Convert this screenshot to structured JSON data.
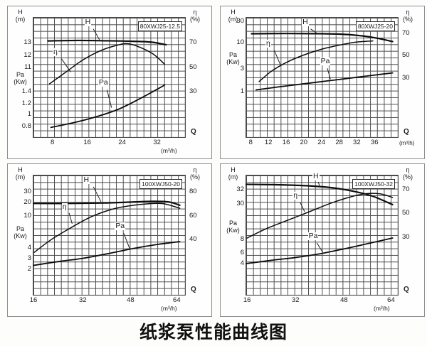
{
  "page": {
    "title": "纸浆泵性能曲线图"
  },
  "chart_data": [
    {
      "type": "line",
      "model": "80XWJ25-12.5",
      "x_label": "Q",
      "x_unit": "(m³/h)",
      "unit_inline": false,
      "left_axis": {
        "label": "H",
        "unit": "(m)",
        "mid_label": "Pa",
        "mid_unit": "(Kw)",
        "mid_y": 52
      },
      "right_axis": {
        "label": "η",
        "unit": "(%)"
      },
      "q": [
        8,
        16,
        24,
        32
      ],
      "series": [
        {
          "name": "H",
          "unit": "m",
          "values": [
            13.2,
            13.1,
            13.0,
            12.9
          ]
        },
        {
          "name": "η",
          "unit": "%",
          "values": [
            37,
            58,
            68,
            55
          ]
        },
        {
          "name": "Pa",
          "unit": "Kw",
          "values": [
            0.8,
            0.95,
            1.18,
            1.45
          ]
        }
      ],
      "grid": {
        "cols": 22,
        "rows": 18
      },
      "x_ticks": [
        {
          "label": "8",
          "x": 13
        },
        {
          "label": "16",
          "x": 36
        },
        {
          "label": "24",
          "x": 59
        },
        {
          "label": "32",
          "x": 82
        }
      ],
      "left_ticks": [
        {
          "label": "13",
          "y": 22
        },
        {
          "label": "12",
          "y": 33
        },
        {
          "label": "11",
          "y": 43
        },
        {
          "label": "1.4",
          "y": 63
        },
        {
          "label": "1.2",
          "y": 73
        },
        {
          "label": "1",
          "y": 82
        },
        {
          "label": "0.8",
          "y": 92
        }
      ],
      "right_ticks": [
        {
          "label": "70",
          "y": 22
        },
        {
          "label": "50",
          "y": 43
        },
        {
          "label": "30",
          "y": 63
        }
      ],
      "curves": [
        {
          "name": "H",
          "points": [
            [
              10,
              20
            ],
            [
              30,
              19.6
            ],
            [
              50,
              19.9
            ],
            [
              66,
              20.3
            ],
            [
              78,
              21
            ],
            [
              88,
              23.2
            ]
          ]
        },
        {
          "name": "η",
          "points": [
            [
              11,
              56
            ],
            [
              22,
              46
            ],
            [
              33,
              36
            ],
            [
              45,
              28
            ],
            [
              56,
              23.5
            ],
            [
              63,
              22.3
            ],
            [
              72,
              26
            ],
            [
              80,
              31.5
            ],
            [
              87,
              39.5
            ]
          ]
        },
        {
          "name": "Pa",
          "points": [
            [
              12,
              92.5
            ],
            [
              27,
              88.5
            ],
            [
              42,
              83.5
            ],
            [
              57,
              77
            ],
            [
              72,
              67.5
            ],
            [
              87,
              57
            ]
          ]
        }
      ],
      "annotations": [
        {
          "text": "H",
          "x": 36,
          "y": 4,
          "leader": [
            40,
            10,
            44,
            19
          ]
        },
        {
          "text": "η",
          "x": 15,
          "y": 29,
          "leader": [
            19,
            35,
            25,
            46
          ]
        },
        {
          "text": "Pa",
          "x": 45,
          "y": 55,
          "leader": [
            49,
            61,
            52,
            76
          ]
        }
      ]
    },
    {
      "type": "line",
      "model": "80XWJ25-20",
      "x_label": "Q",
      "x_unit": "(m³/h)",
      "unit_inline": true,
      "left_axis": {
        "label": "H",
        "unit": "(m)",
        "mid_label": "Pa",
        "mid_unit": "(Kw)",
        "mid_y": 35
      },
      "right_axis": {
        "label": "η",
        "unit": "(%)"
      },
      "q": [
        8,
        12,
        16,
        20,
        24,
        28,
        32,
        36
      ],
      "series": [
        {
          "name": "H",
          "unit": "m",
          "values": [
            21,
            21,
            21,
            20.8,
            20.5,
            20.1,
            19.4,
            18.5
          ]
        },
        {
          "name": "η",
          "unit": "%",
          "values": [
            28,
            37,
            44,
            50,
            55,
            59,
            63,
            64
          ]
        },
        {
          "name": "Pa",
          "unit": "Kw",
          "values": [
            1.15,
            1.3,
            1.45,
            1.6,
            1.8,
            2.0,
            2.2,
            2.5
          ]
        }
      ],
      "grid": {
        "cols": 22,
        "rows": 18
      },
      "x_ticks": [
        {
          "label": "8",
          "x": 3.4
        },
        {
          "label": "12",
          "x": 15.1
        },
        {
          "label": "16",
          "x": 26.8
        },
        {
          "label": "20",
          "x": 38.4
        },
        {
          "label": "24",
          "x": 50.1
        },
        {
          "label": "28",
          "x": 61.8
        },
        {
          "label": "32",
          "x": 73.4
        },
        {
          "label": "36",
          "x": 85.1
        }
      ],
      "left_ticks": [
        {
          "label": "30",
          "y": 4
        },
        {
          "label": "10",
          "y": 22
        },
        {
          "label": "3",
          "y": 44
        },
        {
          "label": "1",
          "y": 63
        }
      ],
      "right_ticks": [
        {
          "label": "70",
          "y": 14
        },
        {
          "label": "50",
          "y": 33
        },
        {
          "label": "30",
          "y": 52
        }
      ],
      "curves": [
        {
          "name": "H",
          "points": [
            [
              4,
              14
            ],
            [
              25,
              13.8
            ],
            [
              45,
              13.9
            ],
            [
              62,
              14.3
            ],
            [
              75,
              15.5
            ],
            [
              86,
              17.5
            ],
            [
              97,
              20.5
            ]
          ]
        },
        {
          "name": "η",
          "points": [
            [
              9,
              54
            ],
            [
              17,
              45.5
            ],
            [
              27,
              38
            ],
            [
              38,
              32
            ],
            [
              50,
              27
            ],
            [
              62,
              23.5
            ],
            [
              73,
              21
            ],
            [
              84,
              20
            ]
          ]
        },
        {
          "name": "Pa",
          "points": [
            [
              7,
              61
            ],
            [
              22,
              58.5
            ],
            [
              38,
              56
            ],
            [
              54,
              53.5
            ],
            [
              70,
              51
            ],
            [
              84,
              48.8
            ],
            [
              97,
              46.8
            ]
          ]
        }
      ],
      "annotations": [
        {
          "text": "H",
          "x": 39,
          "y": 4,
          "leader": [
            43,
            10,
            47,
            13.5
          ]
        },
        {
          "text": "η",
          "x": 15,
          "y": 22,
          "leader": [
            19,
            28,
            23,
            40
          ]
        },
        {
          "text": "Pa",
          "x": 51,
          "y": 37,
          "leader": [
            54,
            43,
            56,
            52
          ]
        }
      ]
    },
    {
      "type": "line",
      "model": "100XWJ50-20",
      "x_label": "Q",
      "x_unit": "(m³/h)",
      "unit_inline": false,
      "left_axis": {
        "label": "H",
        "unit": "(m)",
        "mid_label": "Pa",
        "mid_unit": "(Kw)",
        "mid_y": 49
      },
      "right_axis": {
        "label": "η",
        "unit": "(%)"
      },
      "q": [
        16,
        32,
        48,
        64
      ],
      "series": [
        {
          "name": "H",
          "unit": "m",
          "values": [
            20,
            20,
            20.3,
            18.5
          ]
        },
        {
          "name": "η",
          "unit": "%",
          "values": [
            30,
            55,
            69,
            67
          ]
        },
        {
          "name": "Pa",
          "unit": "Kw",
          "values": [
            2.4,
            3.1,
            4.1,
            4.8
          ]
        }
      ],
      "grid": {
        "cols": 22,
        "rows": 18
      },
      "x_ticks": [
        {
          "label": "16",
          "x": 0.5
        },
        {
          "label": "32",
          "x": 33
        },
        {
          "label": "48",
          "x": 64.5
        },
        {
          "label": "64",
          "x": 95
        }
      ],
      "left_ticks": [
        {
          "label": "30",
          "y": 15
        },
        {
          "label": "20",
          "y": 24
        },
        {
          "label": "10",
          "y": 35
        },
        {
          "label": "4",
          "y": 62
        },
        {
          "label": "3",
          "y": 71
        },
        {
          "label": "2",
          "y": 80
        }
      ],
      "right_ticks": [
        {
          "label": "80",
          "y": 15
        },
        {
          "label": "60",
          "y": 35
        },
        {
          "label": "40",
          "y": 55
        }
      ],
      "curves": [
        {
          "name": "H",
          "points": [
            [
              0,
              24
            ],
            [
              25,
              24
            ],
            [
              48,
              23.6
            ],
            [
              68,
              22.7
            ],
            [
              80,
              22.2
            ],
            [
              90,
              22.8
            ],
            [
              97,
              25.5
            ]
          ]
        },
        {
          "name": "η",
          "points": [
            [
              1,
              65
            ],
            [
              12,
              54.5
            ],
            [
              25,
              44.5
            ],
            [
              38,
              35.5
            ],
            [
              52,
              29
            ],
            [
              64,
              26
            ],
            [
              76,
              24.3
            ],
            [
              86,
              24.2
            ],
            [
              97,
              28
            ]
          ]
        },
        {
          "name": "Pa",
          "points": [
            [
              0,
              76
            ],
            [
              18,
              72.5
            ],
            [
              33,
              70
            ],
            [
              50,
              66
            ],
            [
              66,
              61.8
            ],
            [
              82,
              58.4
            ],
            [
              97,
              56
            ]
          ]
        }
      ],
      "annotations": [
        {
          "text": "H",
          "x": 35,
          "y": 4,
          "leader": [
            40,
            10,
            45,
            22.5
          ]
        },
        {
          "text": "η",
          "x": 21,
          "y": 27,
          "leader": [
            24,
            32,
            26,
            41
          ]
        },
        {
          "text": "Pa",
          "x": 56,
          "y": 43,
          "leader": [
            60,
            49,
            64,
            62
          ]
        }
      ]
    },
    {
      "type": "line",
      "model": "100XWJ50-32",
      "x_label": "Q",
      "x_unit": "(m³/h)",
      "unit_inline": false,
      "left_axis": {
        "label": "H",
        "unit": "(m)",
        "mid_label": "Pa",
        "mid_unit": "(Kw)",
        "mid_y": 44
      },
      "right_axis": {
        "label": "η",
        "unit": "(%)"
      },
      "q": [
        16,
        32,
        48,
        64
      ],
      "series": [
        {
          "name": "H",
          "unit": "m",
          "values": [
            33,
            32.7,
            31.8,
            30
          ]
        },
        {
          "name": "η",
          "unit": "%",
          "values": [
            30,
            48,
            62,
            64
          ]
        },
        {
          "name": "Pa",
          "unit": "Kw",
          "values": [
            4.2,
            5.1,
            6.7,
            8.3
          ]
        }
      ],
      "grid": {
        "cols": 22,
        "rows": 18
      },
      "x_ticks": [
        {
          "label": "16",
          "x": 1
        },
        {
          "label": "32",
          "x": 33
        },
        {
          "label": "48",
          "x": 65
        },
        {
          "label": "64",
          "x": 96
        }
      ],
      "left_ticks": [
        {
          "label": "32",
          "y": 13
        },
        {
          "label": "30",
          "y": 25
        },
        {
          "label": "8",
          "y": 55
        },
        {
          "label": "6",
          "y": 66
        },
        {
          "label": "4",
          "y": 75
        }
      ],
      "right_ticks": [
        {
          "label": "70",
          "y": 13
        },
        {
          "label": "50",
          "y": 33
        },
        {
          "label": "30",
          "y": 53
        }
      ],
      "curves": [
        {
          "name": "H",
          "points": [
            [
              0,
              8
            ],
            [
              22,
              8.4
            ],
            [
              42,
              9.3
            ],
            [
              58,
              11
            ],
            [
              72,
              14
            ],
            [
              84,
              18
            ],
            [
              97,
              25
            ]
          ]
        },
        {
          "name": "η",
          "points": [
            [
              1,
              53
            ],
            [
              14,
              45
            ],
            [
              28,
              38
            ],
            [
              43,
              30.5
            ],
            [
              57,
              23.5
            ],
            [
              70,
              18.3
            ],
            [
              80,
              15.8
            ],
            [
              89,
              16
            ],
            [
              97,
              19
            ]
          ]
        },
        {
          "name": "Pa",
          "points": [
            [
              0,
              74.5
            ],
            [
              18,
              71.5
            ],
            [
              33,
              69.3
            ],
            [
              50,
              66
            ],
            [
              66,
              61.8
            ],
            [
              82,
              57.3
            ],
            [
              97,
              53
            ]
          ]
        }
      ],
      "annotations": [
        {
          "text": "H",
          "x": 46,
          "y": 1,
          "leader": [
            48,
            6,
            49,
            10
          ]
        },
        {
          "text": "η",
          "x": 33,
          "y": 17,
          "leader": [
            36,
            23,
            39,
            31
          ]
        },
        {
          "text": "Pa",
          "x": 43,
          "y": 51,
          "leader": [
            47,
            57,
            51,
            65
          ]
        }
      ]
    }
  ]
}
